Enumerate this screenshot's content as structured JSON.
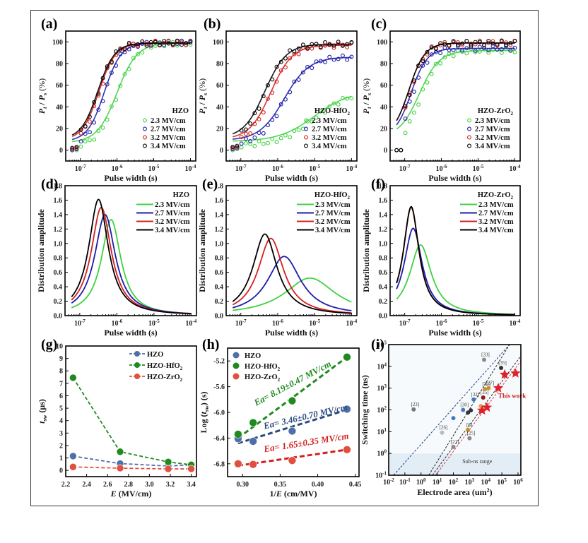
{
  "figure": {
    "panel_labels": [
      "(a)",
      "(b)",
      "(c)",
      "(d)",
      "(e)",
      "(f)",
      "(g)",
      "(h)",
      "(i)"
    ]
  },
  "colors": {
    "2.3 MV/cm": "#3fd23f",
    "2.7 MV/cm": "#1c1ca8",
    "3.2 MV/cm": "#d42020",
    "3.4 MV/cm": "#000000",
    "HZO": "#4e6fa8",
    "HZO-HfO2": "#1f8a1f",
    "HZO-ZrO2": "#e0503f"
  },
  "chart_data": [
    {
      "id": "a",
      "type": "scatter",
      "title": "HZO",
      "xlabel": "Pulse width (s)",
      "ylabel": "P_t / P_s (%)",
      "xscale": "log",
      "xlim": [
        4e-08,
        0.00014
      ],
      "ylim": [
        -10,
        110
      ],
      "xticks": [
        "10^-7",
        "10^-6",
        "10^-5",
        "10^-4"
      ],
      "yticks": [
        0,
        20,
        40,
        60,
        80,
        100
      ],
      "legend_position": "bottom-right",
      "series": [
        {
          "name": "2.3 MV/cm",
          "t50": 1e-06,
          "n": 1.6,
          "pmin": 3,
          "pmax": 99
        },
        {
          "name": "2.7 MV/cm",
          "t50": 4.5e-07,
          "n": 1.9,
          "pmin": 4,
          "pmax": 99
        },
        {
          "name": "3.2 MV/cm",
          "t50": 3.2e-07,
          "n": 1.9,
          "pmin": 5,
          "pmax": 99
        },
        {
          "name": "3.4 MV/cm",
          "t50": 3e-07,
          "n": 1.9,
          "pmin": 6,
          "pmax": 99
        }
      ]
    },
    {
      "id": "b",
      "type": "scatter",
      "title": "HZO-HfO2",
      "xlabel": "Pulse width (s)",
      "ylabel": "P_t / P_s (%)",
      "xscale": "log",
      "xlim": [
        4e-08,
        0.00014
      ],
      "ylim": [
        -10,
        110
      ],
      "xticks": [
        "10^-7",
        "10^-6",
        "10^-5",
        "10^-4"
      ],
      "yticks": [
        0,
        20,
        40,
        60,
        80,
        100
      ],
      "legend_position": "bottom-right",
      "series": [
        {
          "name": "2.3 MV/cm",
          "t50": 1e-05,
          "n": 0.9,
          "pmin": 4,
          "pmax": 55
        },
        {
          "name": "2.7 MV/cm",
          "t50": 1.5e-06,
          "n": 1.3,
          "pmin": 5,
          "pmax": 86
        },
        {
          "name": "3.2 MV/cm",
          "t50": 6.5e-07,
          "n": 1.5,
          "pmin": 6,
          "pmax": 97
        },
        {
          "name": "3.4 MV/cm",
          "t50": 4.5e-07,
          "n": 1.5,
          "pmin": 7,
          "pmax": 98
        }
      ]
    },
    {
      "id": "c",
      "type": "scatter",
      "title": "HZO-ZrO2",
      "xlabel": "Pulse width (s)",
      "ylabel": "P_t / P_s (%)",
      "xscale": "log",
      "xlim": [
        4e-08,
        0.00014
      ],
      "ylim": [
        -10,
        110
      ],
      "xticks": [
        "10^-7",
        "10^-6",
        "10^-5",
        "10^-4"
      ],
      "yticks": [
        0,
        20,
        40,
        60,
        80,
        100
      ],
      "legend_position": "bottom-right",
      "series": [
        {
          "name": "2.3 MV/cm",
          "t50": 2.5e-07,
          "n": 1.6,
          "pmin": 0,
          "pmax": 92
        },
        {
          "name": "2.7 MV/cm",
          "t50": 1.5e-07,
          "n": 2.0,
          "pmin": 0,
          "pmax": 94
        },
        {
          "name": "3.2 MV/cm",
          "t50": 1.3e-07,
          "n": 2.0,
          "pmin": 0,
          "pmax": 99
        },
        {
          "name": "3.4 MV/cm",
          "t50": 1.3e-07,
          "n": 2.0,
          "pmin": 0,
          "pmax": 99
        }
      ]
    },
    {
      "id": "d",
      "type": "line",
      "title": "HZO",
      "xlabel": "Pulse width (s)",
      "ylabel": "Distribution amplitude",
      "xscale": "log",
      "xlim": [
        4e-08,
        0.00014
      ],
      "ylim": [
        0,
        1.8
      ],
      "xticks": [
        "10^-7",
        "10^-6",
        "10^-5",
        "10^-4"
      ],
      "yticks": [
        0.0,
        0.2,
        0.4,
        0.6,
        0.8,
        1.0,
        1.2,
        1.4,
        1.6,
        1.8
      ],
      "legend_position": "top-right",
      "series": [
        {
          "name": "2.3 MV/cm",
          "peak_x": 7e-07,
          "peak_y": 1.33,
          "width_dec": 0.32
        },
        {
          "name": "2.7 MV/cm",
          "peak_x": 4.8e-07,
          "peak_y": 1.4,
          "width_dec": 0.34
        },
        {
          "name": "3.2 MV/cm",
          "peak_x": 3.8e-07,
          "peak_y": 1.5,
          "width_dec": 0.33
        },
        {
          "name": "3.4 MV/cm",
          "peak_x": 3.2e-07,
          "peak_y": 1.61,
          "width_dec": 0.32
        }
      ]
    },
    {
      "id": "e",
      "type": "line",
      "title": "HZO-HfO2",
      "xlabel": "Pulse width (s)",
      "ylabel": "Distribution amplitude",
      "xscale": "log",
      "xlim": [
        4e-08,
        0.00014
      ],
      "ylim": [
        0,
        1.8
      ],
      "xticks": [
        "10^-7",
        "10^-6",
        "10^-5",
        "10^-4"
      ],
      "yticks": [
        0.0,
        0.2,
        0.4,
        0.6,
        0.8,
        1.0,
        1.2,
        1.4,
        1.6,
        1.8
      ],
      "legend_position": "top-right",
      "series": [
        {
          "name": "2.3 MV/cm",
          "peak_x": 7.5e-06,
          "peak_y": 0.52,
          "width_dec": 0.85
        },
        {
          "name": "2.7 MV/cm",
          "peak_x": 1.5e-06,
          "peak_y": 0.82,
          "width_dec": 0.55
        },
        {
          "name": "3.2 MV/cm",
          "peak_x": 6.5e-07,
          "peak_y": 1.07,
          "width_dec": 0.42
        },
        {
          "name": "3.4 MV/cm",
          "peak_x": 4.5e-07,
          "peak_y": 1.13,
          "width_dec": 0.4
        }
      ]
    },
    {
      "id": "f",
      "type": "line",
      "title": "HZO-ZrO2",
      "xlabel": "Pulse width (s)",
      "ylabel": "Distribution amplitude",
      "xscale": "log",
      "xlim": [
        4e-08,
        0.00014
      ],
      "ylim": [
        0,
        1.8
      ],
      "xticks": [
        "10^-7",
        "10^-6",
        "10^-5",
        "10^-4"
      ],
      "yticks": [
        0.0,
        0.2,
        0.4,
        0.6,
        0.8,
        1.0,
        1.2,
        1.4,
        1.6,
        1.8
      ],
      "legend_position": "top-right",
      "series": [
        {
          "name": "2.3 MV/cm",
          "peak_x": 2.7e-07,
          "peak_y": 0.98,
          "width_dec": 0.36
        },
        {
          "name": "2.7 MV/cm",
          "peak_x": 1.7e-07,
          "peak_y": 1.21,
          "width_dec": 0.3
        },
        {
          "name": "3.2 MV/cm",
          "peak_x": 1.5e-07,
          "peak_y": 1.5,
          "width_dec": 0.26
        },
        {
          "name": "3.4 MV/cm",
          "peak_x": 1.5e-07,
          "peak_y": 1.51,
          "width_dec": 0.26
        }
      ]
    },
    {
      "id": "g",
      "type": "line",
      "xlabel": "E (MV/cm)",
      "ylabel": "t_sw (μs)",
      "xlim": [
        2.2,
        3.45
      ],
      "ylim": [
        -0.5,
        10
      ],
      "xticks": [
        2.2,
        2.4,
        2.6,
        2.8,
        3.0,
        3.2,
        3.4
      ],
      "yticks": [
        0,
        1,
        2,
        3,
        4,
        5,
        6,
        7,
        8,
        9,
        10
      ],
      "legend_position": "top-right",
      "x": [
        2.27,
        2.72,
        3.18,
        3.4
      ],
      "series": [
        {
          "name": "HZO",
          "values": [
            1.15,
            0.55,
            0.35,
            0.45
          ]
        },
        {
          "name": "HZO-HfO2",
          "values": [
            7.45,
            1.5,
            0.68,
            0.45
          ]
        },
        {
          "name": "HZO-ZrO2",
          "values": [
            0.28,
            0.18,
            0.12,
            0.12
          ]
        }
      ]
    },
    {
      "id": "h",
      "type": "scatter",
      "xlabel": "1/E (cm/MV)",
      "ylabel": "Log (t_sw) (s)",
      "xlim": [
        0.28,
        0.455
      ],
      "ylim": [
        -7.0,
        -5.0
      ],
      "xticks": [
        0.3,
        0.35,
        0.4,
        0.45
      ],
      "yticks": [
        -6.8,
        -6.4,
        -6.0,
        -5.6,
        -5.2
      ],
      "legend_position": "top-left",
      "x": [
        0.294,
        0.314,
        0.366,
        0.439
      ],
      "series": [
        {
          "name": "HZO",
          "values": [
            -6.41,
            -6.45,
            -6.29,
            -5.95
          ],
          "fit": [
            -6.48,
            -5.96
          ],
          "annotation": "Ea= 3.46±0.70 MV/cm"
        },
        {
          "name": "HZO-HfO2",
          "values": [
            -6.34,
            -6.16,
            -5.82,
            -5.14
          ],
          "fit": [
            -6.4,
            -5.14
          ],
          "annotation": "Ea= 8.19±0.47 MV/cm"
        },
        {
          "name": "HZO-ZrO2",
          "values": [
            -6.8,
            -6.81,
            -6.75,
            -6.58
          ],
          "fit": [
            -6.83,
            -6.58
          ],
          "annotation": "Ea= 1.65±0.35 MV/cm"
        }
      ]
    },
    {
      "id": "i",
      "type": "scatter",
      "xlabel": "Electrode area (um²)",
      "ylabel": "Switching time (ns)",
      "xscale": "log",
      "yscale": "log",
      "xlim": [
        0.01,
        1500000.0
      ],
      "ylim": [
        0.1,
        100000.0
      ],
      "xticks": [
        "10^-2",
        "10^-1",
        "10^0",
        "10^1",
        "10^2",
        "10^3",
        "10^4",
        "10^5",
        "10^6"
      ],
      "yticks": [
        "10^-1",
        "10^0",
        "10^1",
        "10^2",
        "10^3",
        "10^4",
        "10^5"
      ],
      "shaded_region": {
        "label": "Sub-ns range",
        "ymax": 1
      },
      "this_work_label": "This work",
      "this_work_points": [
        [
          6000,
          95
        ],
        [
          12000,
          130
        ],
        [
          60000,
          1000
        ],
        [
          150000,
          4200
        ],
        [
          700000,
          4800
        ]
      ],
      "reference_points": [
        {
          "ref": "[23]",
          "x": 0.35,
          "y": 105,
          "color": "#777777"
        },
        {
          "ref": "[26]",
          "x": 20,
          "y": 9,
          "color": "#bbbbbb"
        },
        {
          "ref": "",
          "x": 100,
          "y": 42,
          "color": "#4a78c0"
        },
        {
          "ref": "[30]",
          "x": 400,
          "y": 100,
          "color": "#4a78c0"
        },
        {
          "ref": "[32]",
          "x": 1800,
          "y": 300,
          "color": "#4a78c0"
        },
        {
          "ref": "",
          "x": 800,
          "y": 75,
          "color": "#333333"
        },
        {
          "ref": "",
          "x": 1200,
          "y": 95,
          "color": "#333333"
        },
        {
          "ref": "[8]",
          "x": 800,
          "y": 12,
          "color": "#c99030"
        },
        {
          "ref": "[25]",
          "x": 1000,
          "y": 5,
          "color": "#888888"
        },
        {
          "ref": "[21]",
          "x": 100,
          "y": 2,
          "color": "#888888"
        },
        {
          "ref": "[35]",
          "x": 7000,
          "y": 370,
          "color": "#8b1a1a"
        },
        {
          "ref": "[32]",
          "x": 9000,
          "y": 900,
          "color": "#c99030"
        },
        {
          "ref": "[27]",
          "x": 15000,
          "y": 1000,
          "color": "#c99030"
        },
        {
          "ref": "",
          "x": 5000,
          "y": 150,
          "color": "#e0a040"
        },
        {
          "ref": "[33]",
          "x": 8000,
          "y": 20000,
          "color": "#888888"
        },
        {
          "ref": "[35]",
          "x": 90000,
          "y": 8500,
          "color": "#333333"
        }
      ],
      "trend_lines": [
        {
          "color": "#1f3f8f",
          "from": [
            0.02,
            0.1
          ],
          "to": [
            300000.0,
            100000.0
          ]
        },
        {
          "color": "#222222",
          "from": [
            3,
            0.1
          ],
          "to": [
            300000.0,
            100000.0
          ]
        },
        {
          "color": "#222222",
          "from": [
            5,
            0.1
          ],
          "to": [
            1500000.0,
            30000.0
          ]
        },
        {
          "color": "#d04040",
          "from": [
            8,
            0.1
          ],
          "to": [
            1500000.0,
            18000.0
          ]
        }
      ]
    }
  ]
}
